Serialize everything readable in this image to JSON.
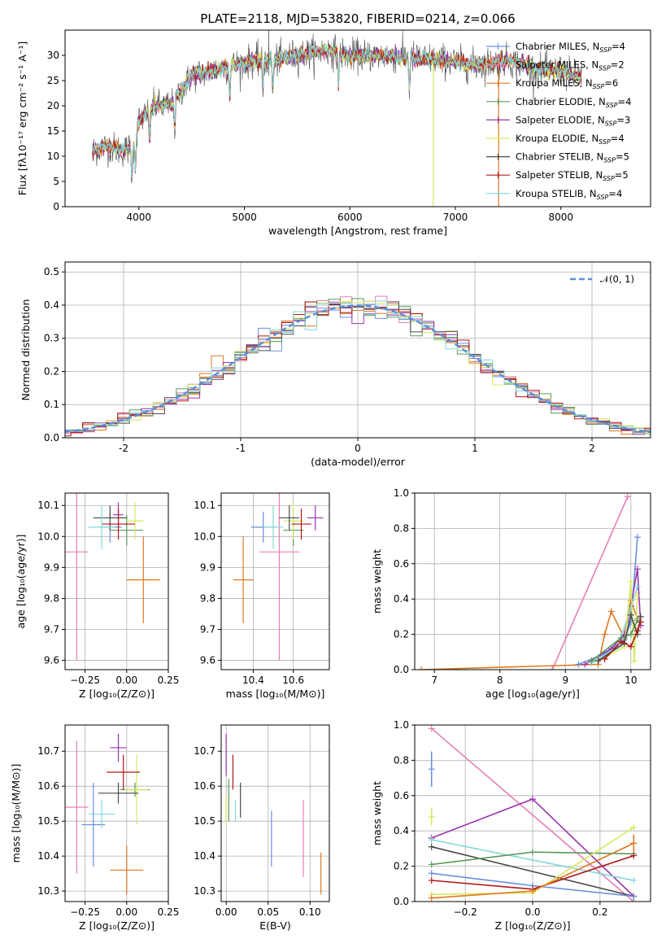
{
  "chart_data": [
    {
      "id": "spectrum",
      "type": "line",
      "title": "PLATE=2118, MJD=53820, FIBERID=0214, z=0.066",
      "xlabel": "wavelength [Angstrom, rest frame]",
      "ylabel": "Flux [fλ10⁻¹⁷ erg cm⁻² s⁻¹ A⁻¹]",
      "xlim": [
        3300,
        8850
      ],
      "ylim": [
        0,
        35
      ],
      "xticks": [
        4000,
        5000,
        6000,
        7000,
        8000
      ],
      "yticks": [
        0,
        5,
        10,
        15,
        20,
        25,
        30
      ],
      "continuum": {
        "x": [
          3550,
          3700,
          3850,
          3950,
          4000,
          4150,
          4300,
          4400,
          4500,
          4700,
          4900,
          5100,
          5300,
          5500,
          5800,
          6000,
          6300,
          6600,
          6900,
          7200,
          7500,
          7800,
          8000,
          8100,
          8200
        ],
        "y": [
          11,
          12,
          11,
          12,
          17,
          20,
          20,
          23,
          26,
          27,
          28,
          29,
          29,
          30,
          31,
          30,
          30,
          29.5,
          29,
          28,
          29,
          27,
          27,
          26,
          26
        ]
      },
      "legend": [
        {
          "label": "Chabrier MILES, N",
          "sub": "SSP",
          "val": "=4",
          "color": "#6a8fdc"
        },
        {
          "label": "Salpeter MILES, N",
          "sub": "SSP",
          "val": "=2",
          "color": "#e77fb5"
        },
        {
          "label": "Kroupa MILES, N",
          "sub": "SSP",
          "val": "=6",
          "color": "#e07820"
        },
        {
          "label": "Chabrier ELODIE, N",
          "sub": "SSP",
          "val": "=4",
          "color": "#5a9a5a"
        },
        {
          "label": "Salpeter ELODIE, N",
          "sub": "SSP",
          "val": "=3",
          "color": "#9a35b0"
        },
        {
          "label": "Kroupa ELODIE, N",
          "sub": "SSP",
          "val": "=4",
          "color": "#d8e860"
        },
        {
          "label": "Chabrier STELIB, N",
          "sub": "SSP",
          "val": "=5",
          "color": "#4a4a4a"
        },
        {
          "label": "Salpeter STELIB, N",
          "sub": "SSP",
          "val": "=5",
          "color": "#b01818"
        },
        {
          "label": "Kroupa STELIB, N",
          "sub": "SSP",
          "val": "=4",
          "color": "#80d8d8"
        }
      ]
    },
    {
      "id": "residuals",
      "type": "histogram",
      "xlabel": "(data-model)/error",
      "ylabel": "Normed distribution",
      "xlim": [
        -2.5,
        2.5
      ],
      "ylim": [
        0,
        0.53
      ],
      "xticks": [
        -2,
        -1,
        0,
        1,
        2
      ],
      "yticks": [
        0.0,
        0.1,
        0.2,
        0.3,
        0.4,
        0.5
      ],
      "legend": "𝒩(0, 1)",
      "gaussian": {
        "mu": 0,
        "sigma": 1,
        "color": "#5b8fd8"
      },
      "bin_width": 0.1,
      "series_colors": [
        "#6a8fdc",
        "#e77fb5",
        "#e07820",
        "#5a9a5a",
        "#9a35b0",
        "#d8e860",
        "#4a4a4a",
        "#b01818",
        "#80d8d8"
      ]
    },
    {
      "id": "age_vs_Z",
      "type": "errorbar",
      "xlabel": "Z [log₁₀(Z/Z⊙)]",
      "ylabel": "age  [log₁₀(age/yr)]",
      "xlim": [
        -0.37,
        0.25
      ],
      "ylim": [
        9.57,
        10.14
      ],
      "xticks": [
        -0.25,
        0.0,
        0.25
      ],
      "xticklabels": [
        "−0.25",
        "0.00",
        "0.25"
      ],
      "yticks": [
        9.6,
        9.7,
        9.8,
        9.9,
        10.0,
        10.1
      ],
      "points": [
        {
          "x": -0.1,
          "y": 10.03,
          "xerr": 0.07,
          "yerr": 0.05,
          "color": "#6a8fdc"
        },
        {
          "x": -0.3,
          "y": 9.95,
          "xerr": 0.07,
          "yerr": 0.35,
          "color": "#e77fb5"
        },
        {
          "x": 0.1,
          "y": 9.86,
          "xerr": 0.1,
          "yerr": 0.14,
          "color": "#e07820"
        },
        {
          "x": -0.0,
          "y": 10.02,
          "xerr": 0.1,
          "yerr": 0.05,
          "color": "#5a9a5a"
        },
        {
          "x": -0.05,
          "y": 10.07,
          "xerr": 0.03,
          "yerr": 0.04,
          "color": "#9a35b0"
        },
        {
          "x": 0.05,
          "y": 10.05,
          "xerr": 0.05,
          "yerr": 0.06,
          "color": "#d8e860"
        },
        {
          "x": -0.1,
          "y": 10.06,
          "xerr": 0.1,
          "yerr": 0.04,
          "color": "#4a4a4a"
        },
        {
          "x": -0.05,
          "y": 10.04,
          "xerr": 0.1,
          "yerr": 0.05,
          "color": "#b01818"
        },
        {
          "x": -0.15,
          "y": 10.03,
          "xerr": 0.08,
          "yerr": 0.07,
          "color": "#80d8d8"
        }
      ]
    },
    {
      "id": "age_vs_mass",
      "type": "errorbar",
      "xlabel": "mass [log₁₀(M/M⊙)]",
      "ylabel": "",
      "xlim": [
        10.24,
        10.78
      ],
      "ylim": [
        9.57,
        10.14
      ],
      "xticks": [
        10.4,
        10.6
      ],
      "xticklabels": [
        "10.4",
        "10.6"
      ],
      "yticks": [
        9.6,
        9.7,
        9.8,
        9.9,
        10.0,
        10.1
      ],
      "points": [
        {
          "x": 10.45,
          "y": 10.03,
          "xerr": 0.06,
          "yerr": 0.05,
          "color": "#6a8fdc"
        },
        {
          "x": 10.53,
          "y": 9.95,
          "xerr": 0.1,
          "yerr": 0.35,
          "color": "#e77fb5"
        },
        {
          "x": 10.35,
          "y": 9.86,
          "xerr": 0.05,
          "yerr": 0.14,
          "color": "#e07820"
        },
        {
          "x": 10.6,
          "y": 10.02,
          "xerr": 0.05,
          "yerr": 0.05,
          "color": "#5a9a5a"
        },
        {
          "x": 10.71,
          "y": 10.06,
          "xerr": 0.04,
          "yerr": 0.04,
          "color": "#9a35b0"
        },
        {
          "x": 10.6,
          "y": 10.05,
          "xerr": 0.05,
          "yerr": 0.06,
          "color": "#d8e860"
        },
        {
          "x": 10.58,
          "y": 10.06,
          "xerr": 0.05,
          "yerr": 0.04,
          "color": "#4a4a4a"
        },
        {
          "x": 10.64,
          "y": 10.04,
          "xerr": 0.05,
          "yerr": 0.05,
          "color": "#b01818"
        },
        {
          "x": 10.5,
          "y": 10.03,
          "xerr": 0.05,
          "yerr": 0.07,
          "color": "#80d8d8"
        }
      ]
    },
    {
      "id": "mw_vs_age",
      "type": "line",
      "xlabel": "age  [log₁₀(age/yr)]",
      "ylabel": "mass weight",
      "xlim": [
        6.7,
        10.3
      ],
      "ylim": [
        0,
        1.0
      ],
      "xticks": [
        7,
        8,
        9,
        10
      ],
      "xticklabels": [
        "7",
        "8",
        "9",
        "10"
      ],
      "yticks": [
        0.0,
        0.2,
        0.4,
        0.6,
        0.8,
        1.0
      ],
      "series": [
        {
          "color": "#e77fb5",
          "x": [
            8.8,
            9.95
          ],
          "y": [
            0.0,
            0.98
          ]
        },
        {
          "color": "#e07820",
          "x": [
            6.8,
            9.5,
            9.6,
            9.7,
            9.9,
            10.0,
            10.1
          ],
          "y": [
            0.0,
            0.03,
            0.2,
            0.33,
            0.18,
            0.39,
            0.29
          ]
        },
        {
          "color": "#6a8fdc",
          "x": [
            9.2,
            9.6,
            9.9,
            10.0,
            10.1
          ],
          "y": [
            0.03,
            0.09,
            0.17,
            0.27,
            0.75
          ]
        },
        {
          "color": "#9a35b0",
          "x": [
            9.3,
            9.7,
            9.9,
            10.0,
            10.1,
            10.15
          ],
          "y": [
            0.03,
            0.12,
            0.2,
            0.36,
            0.57,
            0.25
          ]
        },
        {
          "color": "#80d8d8",
          "x": [
            9.4,
            9.8,
            10.0,
            10.1
          ],
          "y": [
            0.04,
            0.13,
            0.35,
            0.47
          ]
        },
        {
          "color": "#d8e860",
          "x": [
            9.5,
            9.9,
            10.0,
            10.05,
            10.1
          ],
          "y": [
            0.05,
            0.13,
            0.5,
            0.05,
            0.42
          ]
        },
        {
          "color": "#5a9a5a",
          "x": [
            9.4,
            9.85,
            10.0,
            10.1
          ],
          "y": [
            0.05,
            0.18,
            0.2,
            0.28
          ]
        },
        {
          "color": "#4a4a4a",
          "x": [
            9.5,
            9.9,
            10.0,
            10.1,
            10.15
          ],
          "y": [
            0.05,
            0.15,
            0.31,
            0.2,
            0.3
          ]
        },
        {
          "color": "#b01818",
          "x": [
            9.6,
            9.85,
            10.0,
            10.1,
            10.15
          ],
          "y": [
            0.06,
            0.16,
            0.13,
            0.22,
            0.27
          ]
        }
      ]
    },
    {
      "id": "mass_vs_Z",
      "type": "errorbar",
      "xlabel": "Z [log₁₀(Z/Z⊙)]",
      "ylabel": "mass [log₁₀(M/M⊙)]",
      "xlim": [
        -0.37,
        0.25
      ],
      "ylim": [
        10.27,
        10.775
      ],
      "xticks": [
        -0.25,
        0.0,
        0.25
      ],
      "xticklabels": [
        "−0.25",
        "0.00",
        "0.25"
      ],
      "yticks": [
        10.3,
        10.4,
        10.5,
        10.6,
        10.7
      ],
      "points": [
        {
          "x": -0.2,
          "y": 10.49,
          "xerr": 0.07,
          "yerr": 0.12,
          "color": "#6a8fdc"
        },
        {
          "x": -0.3,
          "y": 10.54,
          "xerr": 0.07,
          "yerr": 0.19,
          "color": "#e77fb5"
        },
        {
          "x": 0.0,
          "y": 10.36,
          "xerr": 0.1,
          "yerr": 0.07,
          "color": "#e07820"
        },
        {
          "x": 0.05,
          "y": 10.59,
          "xerr": 0.09,
          "yerr": 0.02,
          "color": "#5a9a5a"
        },
        {
          "x": -0.05,
          "y": 10.71,
          "xerr": 0.05,
          "yerr": 0.04,
          "color": "#9a35b0"
        },
        {
          "x": 0.06,
          "y": 10.59,
          "xerr": 0.07,
          "yerr": 0.1,
          "color": "#d8e860"
        },
        {
          "x": -0.05,
          "y": 10.58,
          "xerr": 0.12,
          "yerr": 0.03,
          "color": "#4a4a4a"
        },
        {
          "x": -0.02,
          "y": 10.64,
          "xerr": 0.1,
          "yerr": 0.05,
          "color": "#b01818"
        },
        {
          "x": -0.15,
          "y": 10.52,
          "xerr": 0.08,
          "yerr": 0.04,
          "color": "#80d8d8"
        }
      ]
    },
    {
      "id": "mass_vs_ebv",
      "type": "errorbar",
      "xlabel": "E(B-V)",
      "ylabel": "",
      "xlim": [
        -0.006,
        0.123
      ],
      "ylim": [
        10.27,
        10.775
      ],
      "xticks": [
        0.0,
        0.05,
        0.1
      ],
      "xticklabels": [
        "0.00",
        "0.05",
        "0.10"
      ],
      "yticks": [
        10.3,
        10.4,
        10.5,
        10.6,
        10.7
      ],
      "points": [
        {
          "x": 0.054,
          "y": 10.45,
          "xerr": 0,
          "yerr": 0.08,
          "color": "#6a8fdc"
        },
        {
          "x": 0.092,
          "y": 10.45,
          "xerr": 0,
          "yerr": 0.11,
          "color": "#e77fb5"
        },
        {
          "x": 0.113,
          "y": 10.35,
          "xerr": 0,
          "yerr": 0.06,
          "color": "#e07820"
        },
        {
          "x": 0.003,
          "y": 10.56,
          "xerr": 0,
          "yerr": 0.06,
          "color": "#5a9a5a"
        },
        {
          "x": 0.0,
          "y": 10.69,
          "xerr": 0,
          "yerr": 0.06,
          "color": "#9a35b0"
        },
        {
          "x": 0.0,
          "y": 10.53,
          "xerr": 0,
          "yerr": 0.04,
          "color": "#d8e860"
        },
        {
          "x": 0.017,
          "y": 10.56,
          "xerr": 0,
          "yerr": 0.05,
          "color": "#4a4a4a"
        },
        {
          "x": 0.008,
          "y": 10.64,
          "xerr": 0,
          "yerr": 0.05,
          "color": "#b01818"
        },
        {
          "x": 0.011,
          "y": 10.53,
          "xerr": 0,
          "yerr": 0.03,
          "color": "#80d8d8"
        }
      ]
    },
    {
      "id": "mw_vs_Z",
      "type": "line",
      "xlabel": "Z [log₁₀(Z/Z⊙)]",
      "ylabel": "mass weight",
      "xlim": [
        -0.35,
        0.35
      ],
      "ylim": [
        0,
        1.0
      ],
      "xticks": [
        -0.2,
        0.0,
        0.2
      ],
      "xticklabels": [
        "−0.2",
        "0.0",
        "0.2"
      ],
      "yticks": [
        0.0,
        0.2,
        0.4,
        0.6,
        0.8,
        1.0
      ],
      "series": [
        {
          "color": "#e77fb5",
          "x": [
            -0.3,
            0.3
          ],
          "y": [
            0.98,
            0.0
          ]
        },
        {
          "color": "#9a35b0",
          "x": [
            -0.3,
            0.0,
            0.3
          ],
          "y": [
            0.36,
            0.58,
            0.03
          ]
        },
        {
          "color": "#80d8d8",
          "x": [
            -0.3,
            0.3
          ],
          "y": [
            0.35,
            0.12
          ]
        },
        {
          "color": "#4a4a4a",
          "x": [
            -0.3,
            0.3
          ],
          "y": [
            0.31,
            0.03
          ]
        },
        {
          "color": "#5a9a5a",
          "x": [
            -0.3,
            0.0,
            0.3
          ],
          "y": [
            0.21,
            0.28,
            0.27
          ]
        },
        {
          "color": "#6a8fdc",
          "x": [
            -0.3,
            0.0,
            0.3
          ],
          "y": [
            0.16,
            0.09,
            0.03
          ]
        },
        {
          "color": "#b01818",
          "x": [
            -0.3,
            0.0,
            0.3
          ],
          "y": [
            0.12,
            0.07,
            0.26
          ]
        },
        {
          "color": "#d8e860",
          "x": [
            -0.3,
            0.0,
            0.3
          ],
          "y": [
            0.04,
            0.05,
            0.42
          ]
        },
        {
          "color": "#e07820",
          "x": [
            -0.3,
            0.0,
            0.3
          ],
          "y": [
            0.02,
            0.06,
            0.33
          ]
        }
      ],
      "markers": [
        {
          "color": "#6a8fdc",
          "x": -0.3,
          "y": 0.75,
          "yerr": 0.1
        },
        {
          "color": "#d8e860",
          "x": -0.3,
          "y": 0.48,
          "yerr": 0.05
        },
        {
          "color": "#e07820",
          "x": 0.3,
          "y": 0.33,
          "yerr": 0.05
        }
      ]
    }
  ]
}
